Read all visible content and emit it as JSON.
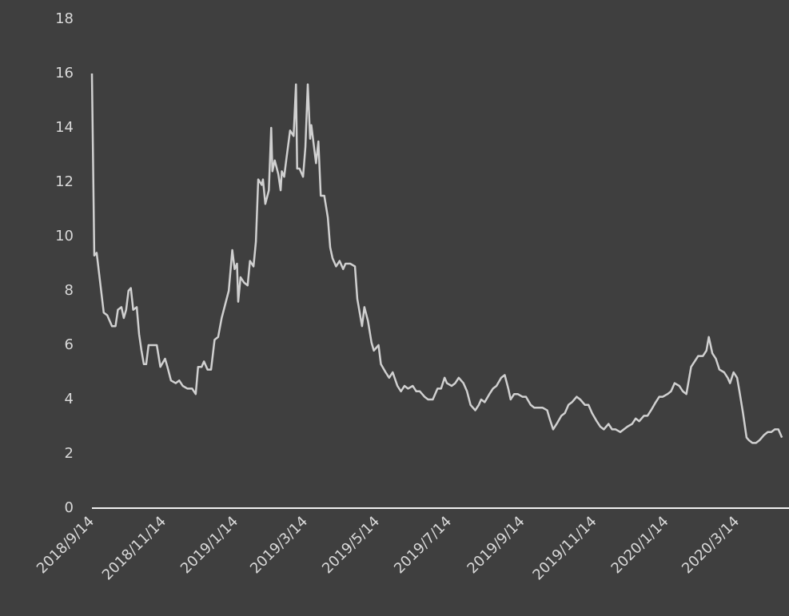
{
  "chart_data": {
    "type": "line",
    "x": [
      "2018/9/14",
      "2018/9/16",
      "2018/9/18",
      "2018/9/21",
      "2018/9/24",
      "2018/9/27",
      "2018/10/1",
      "2018/10/4",
      "2018/10/6",
      "2018/10/9",
      "2018/10/11",
      "2018/10/13",
      "2018/10/15",
      "2018/10/17",
      "2018/10/19",
      "2018/10/22",
      "2018/10/24",
      "2018/10/26",
      "2018/10/28",
      "2018/10/30",
      "2018/11/1",
      "2018/11/5",
      "2018/11/8",
      "2018/11/11",
      "2018/11/15",
      "2018/11/17",
      "2018/11/20",
      "2018/11/24",
      "2018/11/27",
      "2018/11/30",
      "2018/12/4",
      "2018/12/8",
      "2018/12/11",
      "2018/12/13",
      "2018/12/16",
      "2018/12/18",
      "2018/12/21",
      "2018/12/24",
      "2018/12/27",
      "2018/12/30",
      "2019/1/2",
      "2019/1/5",
      "2019/1/8",
      "2019/1/11",
      "2019/1/13",
      "2019/1/15",
      "2019/1/16",
      "2019/1/18",
      "2019/1/21",
      "2019/1/24",
      "2019/1/26",
      "2019/1/29",
      "2019/1/31",
      "2019/2/2",
      "2019/2/5",
      "2019/2/6",
      "2019/2/8",
      "2019/2/11",
      "2019/2/13",
      "2019/2/14",
      "2019/2/16",
      "2019/2/19",
      "2019/2/21",
      "2019/2/22",
      "2019/2/24",
      "2019/2/26",
      "2019/3/1",
      "2019/3/4",
      "2019/3/6",
      "2019/3/7",
      "2019/3/9",
      "2019/3/12",
      "2019/3/14",
      "2019/3/16",
      "2019/3/18",
      "2019/3/19",
      "2019/3/21",
      "2019/3/23",
      "2019/3/25",
      "2019/3/27",
      "2019/3/30",
      "2019/4/2",
      "2019/4/4",
      "2019/4/6",
      "2019/4/9",
      "2019/4/12",
      "2019/4/15",
      "2019/4/17",
      "2019/4/21",
      "2019/4/25",
      "2019/4/27",
      "2019/5/1",
      "2019/5/3",
      "2019/5/6",
      "2019/5/9",
      "2019/5/11",
      "2019/5/15",
      "2019/5/17",
      "2019/5/21",
      "2019/5/24",
      "2019/5/27",
      "2019/5/31",
      "2019/6/3",
      "2019/6/6",
      "2019/6/9",
      "2019/6/13",
      "2019/6/16",
      "2019/6/19",
      "2019/6/23",
      "2019/6/26",
      "2019/6/30",
      "2019/7/4",
      "2019/7/7",
      "2019/7/10",
      "2019/7/12",
      "2019/7/16",
      "2019/7/19",
      "2019/7/22",
      "2019/7/26",
      "2019/7/29",
      "2019/8/1",
      "2019/8/5",
      "2019/8/8",
      "2019/8/10",
      "2019/8/13",
      "2019/8/17",
      "2019/8/20",
      "2019/8/23",
      "2019/8/27",
      "2019/8/30",
      "2019/9/2",
      "2019/9/4",
      "2019/9/7",
      "2019/9/10",
      "2019/9/14",
      "2019/9/17",
      "2019/9/21",
      "2019/9/24",
      "2019/9/27",
      "2019/10/1",
      "2019/10/5",
      "2019/10/7",
      "2019/10/10",
      "2019/10/13",
      "2019/10/17",
      "2019/10/20",
      "2019/10/23",
      "2019/10/26",
      "2019/10/30",
      "2019/11/2",
      "2019/11/6",
      "2019/11/9",
      "2019/11/12",
      "2019/11/16",
      "2019/11/19",
      "2019/11/22",
      "2019/11/26",
      "2019/11/29",
      "2019/12/2",
      "2019/12/6",
      "2019/12/9",
      "2019/12/12",
      "2019/12/16",
      "2019/12/19",
      "2019/12/22",
      "2019/12/26",
      "2019/12/29",
      "2020/1/1",
      "2020/1/5",
      "2020/1/8",
      "2020/1/11",
      "2020/1/15",
      "2020/1/18",
      "2020/1/21",
      "2020/1/25",
      "2020/1/28",
      "2020/1/31",
      "2020/2/4",
      "2020/2/7",
      "2020/2/10",
      "2020/2/14",
      "2020/2/17",
      "2020/2/19",
      "2020/2/22",
      "2020/2/25",
      "2020/2/28",
      "2020/3/3",
      "2020/3/6",
      "2020/3/8",
      "2020/3/11",
      "2020/3/14",
      "2020/3/16",
      "2020/3/19",
      "2020/3/22",
      "2020/3/24",
      "2020/3/27",
      "2020/3/30",
      "2020/4/2",
      "2020/4/6",
      "2020/4/9",
      "2020/4/12",
      "2020/4/15",
      "2020/4/18",
      "2020/4/21"
    ],
    "values": [
      16.0,
      9.3,
      9.4,
      8.3,
      7.2,
      7.1,
      6.7,
      6.7,
      7.3,
      7.4,
      7.0,
      7.3,
      8.0,
      8.1,
      7.3,
      7.4,
      6.4,
      5.8,
      5.3,
      5.3,
      6.0,
      6.0,
      6.0,
      5.2,
      5.5,
      5.2,
      4.7,
      4.6,
      4.7,
      4.5,
      4.4,
      4.4,
      4.2,
      5.2,
      5.2,
      5.4,
      5.1,
      5.1,
      6.2,
      6.3,
      7.0,
      7.5,
      8.0,
      9.5,
      8.8,
      9.0,
      7.6,
      8.5,
      8.3,
      8.2,
      9.1,
      8.9,
      9.8,
      12.1,
      11.9,
      12.1,
      11.2,
      11.7,
      14.0,
      12.4,
      12.8,
      12.3,
      11.7,
      12.4,
      12.2,
      12.9,
      13.9,
      13.7,
      15.6,
      12.5,
      12.5,
      12.2,
      13.3,
      15.6,
      13.6,
      14.1,
      13.4,
      12.7,
      13.5,
      11.5,
      11.5,
      10.7,
      9.6,
      9.2,
      8.9,
      9.1,
      8.8,
      9.0,
      9.0,
      8.9,
      7.7,
      6.7,
      7.4,
      6.9,
      6.1,
      5.8,
      6.0,
      5.3,
      5.0,
      4.8,
      5.0,
      4.5,
      4.3,
      4.5,
      4.4,
      4.5,
      4.3,
      4.3,
      4.1,
      4.0,
      4.0,
      4.4,
      4.4,
      4.8,
      4.6,
      4.5,
      4.6,
      4.8,
      4.6,
      4.3,
      3.8,
      3.6,
      3.8,
      4.0,
      3.9,
      4.2,
      4.4,
      4.5,
      4.8,
      4.9,
      4.4,
      4.0,
      4.2,
      4.2,
      4.1,
      4.1,
      3.8,
      3.7,
      3.7,
      3.7,
      3.6,
      3.3,
      2.9,
      3.1,
      3.4,
      3.5,
      3.8,
      3.9,
      4.1,
      4.0,
      3.8,
      3.8,
      3.5,
      3.2,
      3.0,
      2.9,
      3.1,
      2.9,
      2.9,
      2.8,
      2.9,
      3.0,
      3.1,
      3.3,
      3.2,
      3.4,
      3.4,
      3.6,
      3.9,
      4.1,
      4.1,
      4.2,
      4.3,
      4.6,
      4.5,
      4.3,
      4.2,
      5.2,
      5.4,
      5.6,
      5.6,
      5.8,
      6.3,
      5.7,
      5.5,
      5.1,
      5.0,
      4.8,
      4.6,
      5.0,
      4.8,
      4.3,
      3.5,
      2.6,
      2.5,
      2.4,
      2.4,
      2.5,
      2.7,
      2.8,
      2.8,
      2.9,
      2.9,
      2.6
    ],
    "color": "#d0d0d0",
    "xlim": [
      "2018/9/14",
      "2020/4/27"
    ],
    "xticks": [
      "2018/9/14",
      "2018/11/14",
      "2019/1/14",
      "2019/3/14",
      "2019/5/14",
      "2019/7/14",
      "2019/9/14",
      "2019/11/14",
      "2020/1/14",
      "2020/3/14"
    ],
    "ylim": [
      0,
      18
    ],
    "yticks": [
      0,
      2,
      4,
      6,
      8,
      10,
      12,
      14,
      16,
      18
    ]
  }
}
